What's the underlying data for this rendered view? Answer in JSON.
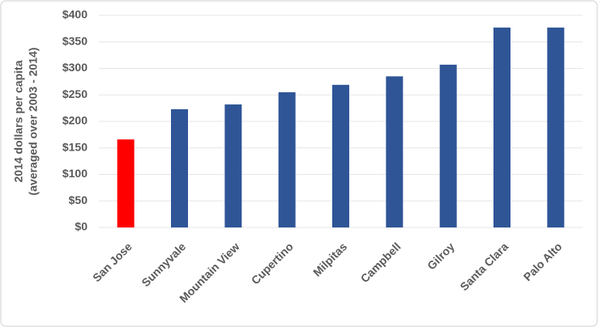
{
  "chart_data": {
    "type": "bar",
    "y_label": [
      "2014 dollars per capita",
      "(averaged over 2003 - 2014)"
    ],
    "categories": [
      "San Jose",
      "Sunnyvale",
      "Mountain View",
      "Cupertino",
      "Milpitas",
      "Campbell",
      "Gilroy",
      "Santa Clara",
      "Palo Alto"
    ],
    "values": [
      166,
      223,
      232,
      255,
      269,
      285,
      307,
      377,
      377
    ],
    "colors": [
      "#ff0000",
      "#2f5597",
      "#2f5597",
      "#2f5597",
      "#2f5597",
      "#2f5597",
      "#2f5597",
      "#2f5597",
      "#2f5597"
    ],
    "ylim": [
      0,
      400
    ],
    "yticks": [
      {
        "value": 0,
        "label": "$0"
      },
      {
        "value": 50,
        "label": "$50"
      },
      {
        "value": 100,
        "label": "$100"
      },
      {
        "value": 150,
        "label": "$150"
      },
      {
        "value": 200,
        "label": "$200"
      },
      {
        "value": 250,
        "label": "$250"
      },
      {
        "value": 300,
        "label": "$300"
      },
      {
        "value": 350,
        "label": "$350"
      },
      {
        "value": 400,
        "label": "$400"
      }
    ],
    "grid": true
  }
}
